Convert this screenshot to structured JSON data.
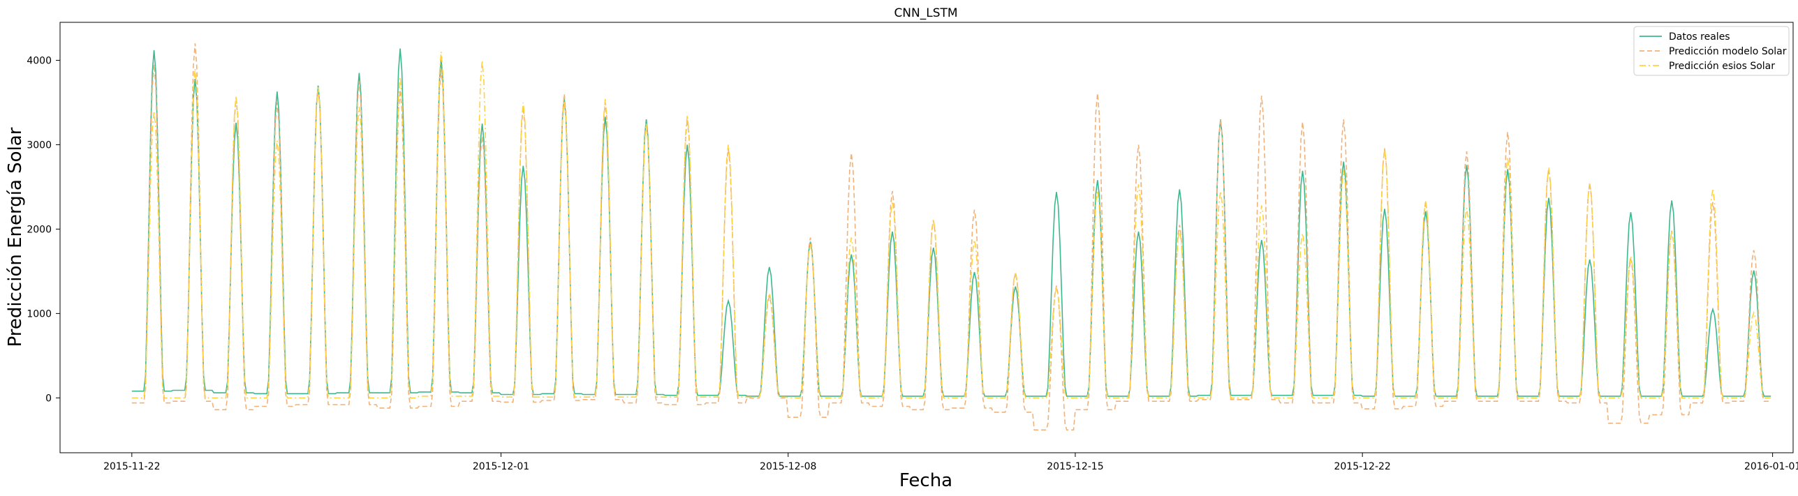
{
  "chart_data": {
    "type": "line",
    "title": "CNN_LSTM",
    "xlabel": "Fecha",
    "ylabel": "Predicción Energía Solar",
    "x_ticks": [
      "2015-11-22",
      "2015-12-01",
      "2015-12-08",
      "2015-12-15",
      "2015-12-22",
      "2016-01-01"
    ],
    "y_ticks": [
      0,
      1000,
      2000,
      3000,
      4000
    ],
    "xlim": [
      "2015-11-20T06:00",
      "2016-01-01T12:00"
    ],
    "ylim": [
      -650,
      4450
    ],
    "grid": false,
    "legend_position": "top-right",
    "days": [
      "2015-11-22",
      "2015-11-23",
      "2015-11-24",
      "2015-11-25",
      "2015-11-26",
      "2015-11-27",
      "2015-11-28",
      "2015-11-29",
      "2015-11-30",
      "2015-12-01",
      "2015-12-02",
      "2015-12-03",
      "2015-12-04",
      "2015-12-05",
      "2015-12-06",
      "2015-12-07",
      "2015-12-08",
      "2015-12-09",
      "2015-12-10",
      "2015-12-11",
      "2015-12-12",
      "2015-12-13",
      "2015-12-14",
      "2015-12-15",
      "2015-12-16",
      "2015-12-17",
      "2015-12-18",
      "2015-12-19",
      "2015-12-20",
      "2015-12-21",
      "2015-12-22",
      "2015-12-23",
      "2015-12-24",
      "2015-12-25",
      "2015-12-26",
      "2015-12-27",
      "2015-12-28",
      "2015-12-29",
      "2015-12-30",
      "2015-12-31"
    ],
    "series": [
      {
        "name": "Datos reales",
        "color": "#3cb88f",
        "dash": "solid",
        "daily_peak": [
          4120,
          3780,
          3260,
          3630,
          3700,
          3850,
          4140,
          4010,
          3250,
          2750,
          3550,
          3330,
          3300,
          3000,
          1150,
          1550,
          1850,
          1700,
          1970,
          1780,
          1490,
          1320,
          2440,
          2580,
          1970,
          2470,
          3300,
          1870,
          2690,
          2800,
          2240,
          2210,
          2760,
          2710,
          2370,
          1640,
          2200,
          2340,
          1050,
          1510
        ],
        "night_level": [
          80,
          90,
          60,
          50,
          50,
          60,
          60,
          70,
          60,
          40,
          50,
          40,
          40,
          30,
          30,
          20,
          20,
          20,
          20,
          20,
          20,
          20,
          20,
          20,
          20,
          20,
          30,
          30,
          30,
          30,
          20,
          20,
          20,
          20,
          20,
          20,
          20,
          20,
          20,
          20
        ]
      },
      {
        "name": "Predicción modelo Solar",
        "color": "#f0b27a",
        "dash": "dashed",
        "daily_peak": [
          3950,
          4200,
          3550,
          3500,
          3680,
          3750,
          3650,
          3900,
          3100,
          3450,
          3600,
          3500,
          3250,
          3300,
          2950,
          1200,
          1900,
          2900,
          2450,
          2100,
          2230,
          1480,
          1330,
          3610,
          3000,
          2050,
          3300,
          3580,
          3270,
          3300,
          2950,
          2330,
          2920,
          3150,
          2720,
          2550,
          1650,
          1980,
          2320,
          1750
        ],
        "night_level": [
          -60,
          -40,
          -140,
          -100,
          -80,
          -80,
          -120,
          -100,
          -40,
          -50,
          -30,
          -20,
          -60,
          -80,
          -60,
          0,
          -230,
          -60,
          -100,
          -140,
          -120,
          -170,
          -380,
          -140,
          -40,
          -40,
          -20,
          -20,
          -60,
          -60,
          -130,
          -100,
          -40,
          -40,
          -40,
          -60,
          -300,
          -200,
          -60,
          -40
        ]
      },
      {
        "name": "Predicción esios Solar",
        "color": "#ffd23f",
        "dash": "dashdot",
        "daily_peak": [
          3400,
          3900,
          3580,
          3050,
          3680,
          3450,
          3800,
          4100,
          4000,
          3500,
          3520,
          3540,
          3250,
          3350,
          3000,
          1240,
          1820,
          1900,
          2330,
          2120,
          1870,
          1490,
          1300,
          2460,
          2530,
          1990,
          2450,
          2280,
          1950,
          2700,
          2960,
          2330,
          2250,
          2850,
          2730,
          2540,
          1680,
          1980,
          2480,
          1010
        ],
        "night_level": [
          0,
          0,
          0,
          0,
          0,
          0,
          0,
          20,
          20,
          10,
          10,
          10,
          10,
          10,
          10,
          10,
          0,
          0,
          0,
          0,
          0,
          0,
          0,
          0,
          0,
          0,
          0,
          0,
          0,
          0,
          0,
          0,
          0,
          0,
          0,
          0,
          0,
          0,
          0,
          0
        ]
      }
    ]
  }
}
